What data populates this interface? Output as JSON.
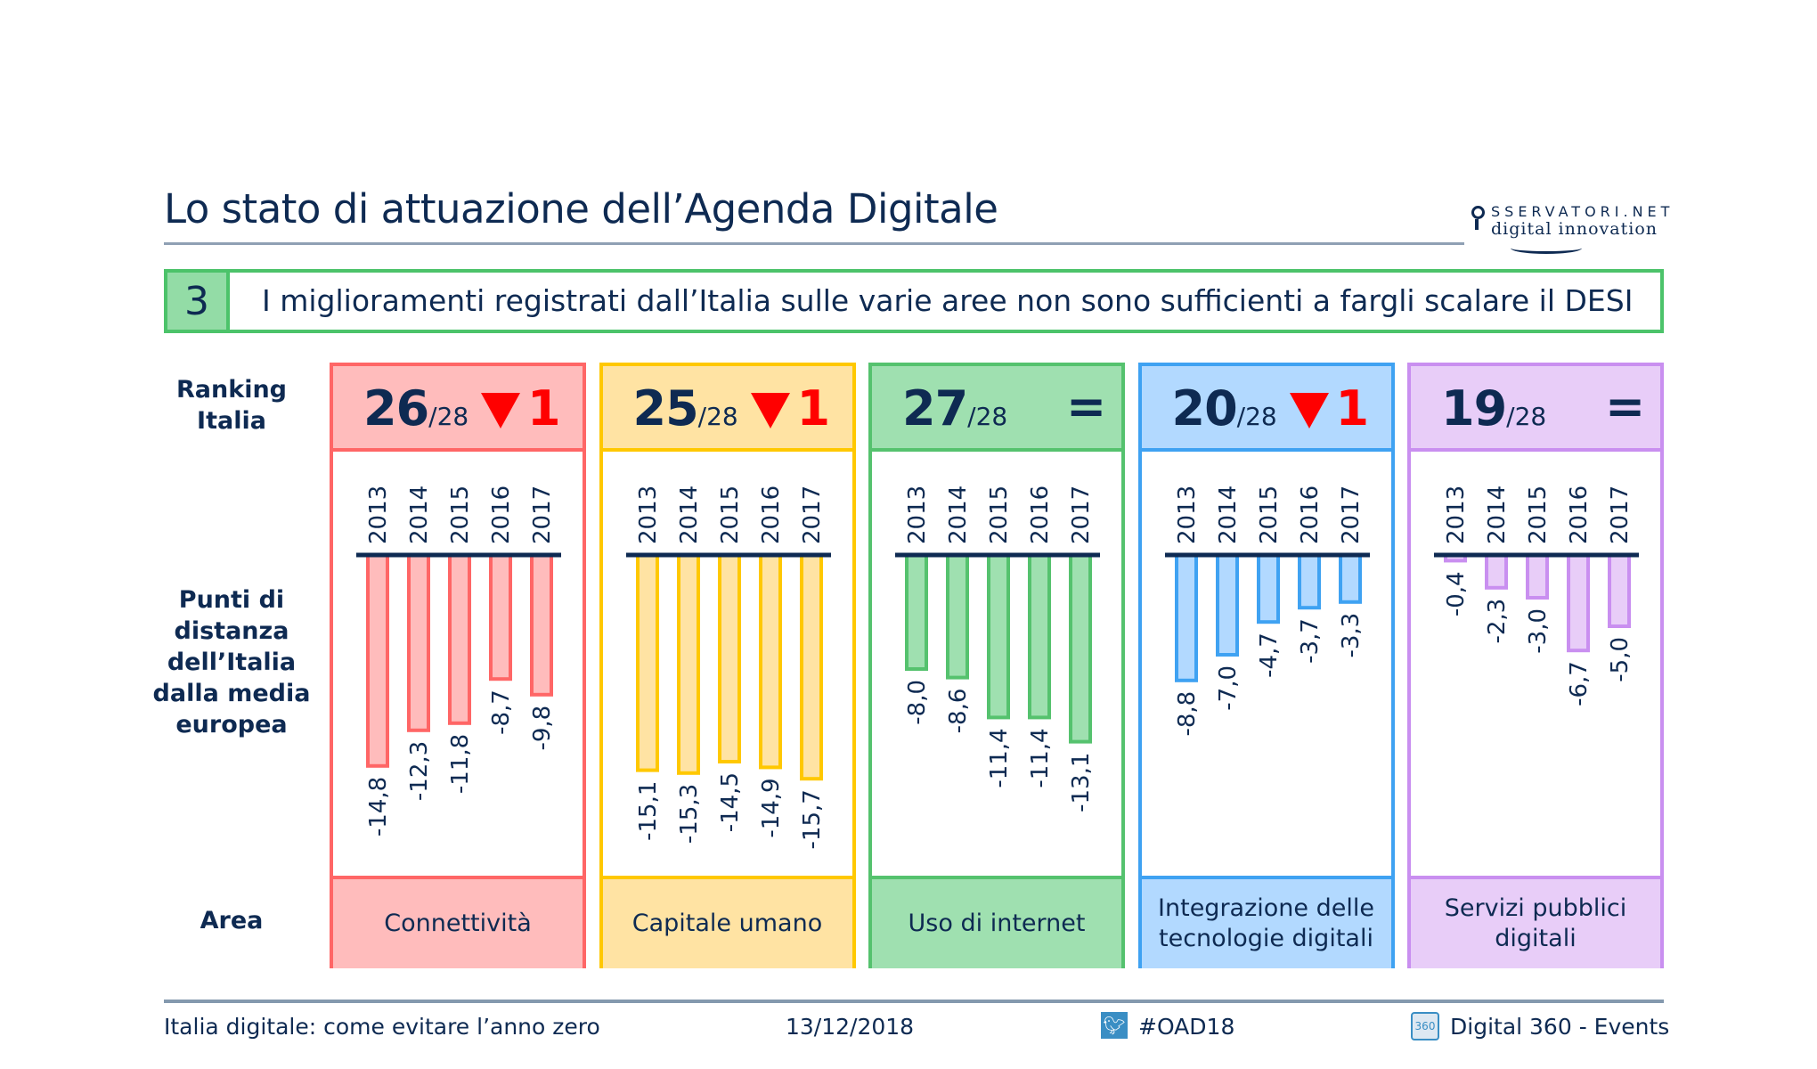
{
  "title": "Lo stato di attuazione dell’Agenda Digitale",
  "logo": {
    "line1": "SSERVATORI.NET",
    "line2": "digital innovation"
  },
  "banner": {
    "number": "3",
    "text": "I miglioramenti registrati dall’Italia sulle varie aree non sono sufficienti a fargli scalare il DESI"
  },
  "side_labels": {
    "ranking": "Ranking Italia",
    "points": "Punti di distanza dell’Italia dalla media europea",
    "area": "Area"
  },
  "chart_data": {
    "type": "bar",
    "categories": [
      "2013",
      "2014",
      "2015",
      "2016",
      "2017"
    ],
    "ylim": [
      -16,
      0
    ],
    "panels": [
      {
        "area": "Connettività",
        "rank": "26",
        "total": "/28",
        "change": "1",
        "trend": "down",
        "border": "#ff6666",
        "fill": "#ffbcbc",
        "values": [
          -14.8,
          -12.3,
          -11.8,
          -8.7,
          -9.8
        ],
        "labels": [
          "-14,8",
          "-12,3",
          "-11,8",
          "-8,7",
          "-9,8"
        ]
      },
      {
        "area": "Capitale umano",
        "rank": "25",
        "total": "/28",
        "change": "1",
        "trend": "down",
        "border": "#ffc800",
        "fill": "#ffe3a3",
        "values": [
          -15.1,
          -15.3,
          -14.5,
          -14.9,
          -15.7
        ],
        "labels": [
          "-15,1",
          "-15,3",
          "-14,5",
          "-14,9",
          "-15,7"
        ]
      },
      {
        "area": "Uso di internet",
        "rank": "27",
        "total": "/28",
        "change": "=",
        "trend": "equal",
        "border": "#55c26e",
        "fill": "#9fe0b0",
        "values": [
          -8.0,
          -8.6,
          -11.4,
          -11.4,
          -13.1
        ],
        "labels": [
          "-8,0",
          "-8,6",
          "-11,4",
          "-11,4",
          "-13,1"
        ]
      },
      {
        "area": "Integrazione delle tecnologie digitali",
        "rank": "20",
        "total": "/28",
        "change": "1",
        "trend": "down",
        "border": "#3fa2f2",
        "fill": "#b2d9ff",
        "values": [
          -8.8,
          -7.0,
          -4.7,
          -3.7,
          -3.3
        ],
        "labels": [
          "-8,8",
          "-7,0",
          "-4,7",
          "-3,7",
          "-3,3"
        ]
      },
      {
        "area": "Servizi pubblici digitali",
        "rank": "19",
        "total": "/28",
        "change": "=",
        "trend": "equal",
        "border": "#c98ff0",
        "fill": "#e8cdf8",
        "values": [
          -0.4,
          -2.3,
          -3.0,
          -6.7,
          -5.0
        ],
        "labels": [
          "-0,4",
          "-2,3",
          "-3,0",
          "-6,7",
          "-5,0"
        ]
      }
    ]
  },
  "footer": {
    "event": "Italia digitale: come evitare l’anno zero",
    "date": "13/12/2018",
    "hashtag": "#OAD18",
    "organizer": "Digital 360 - Events",
    "twitter_icon": "twitter-icon",
    "organizer_icon": "digital360-icon",
    "organizer_icon_text": "360"
  }
}
